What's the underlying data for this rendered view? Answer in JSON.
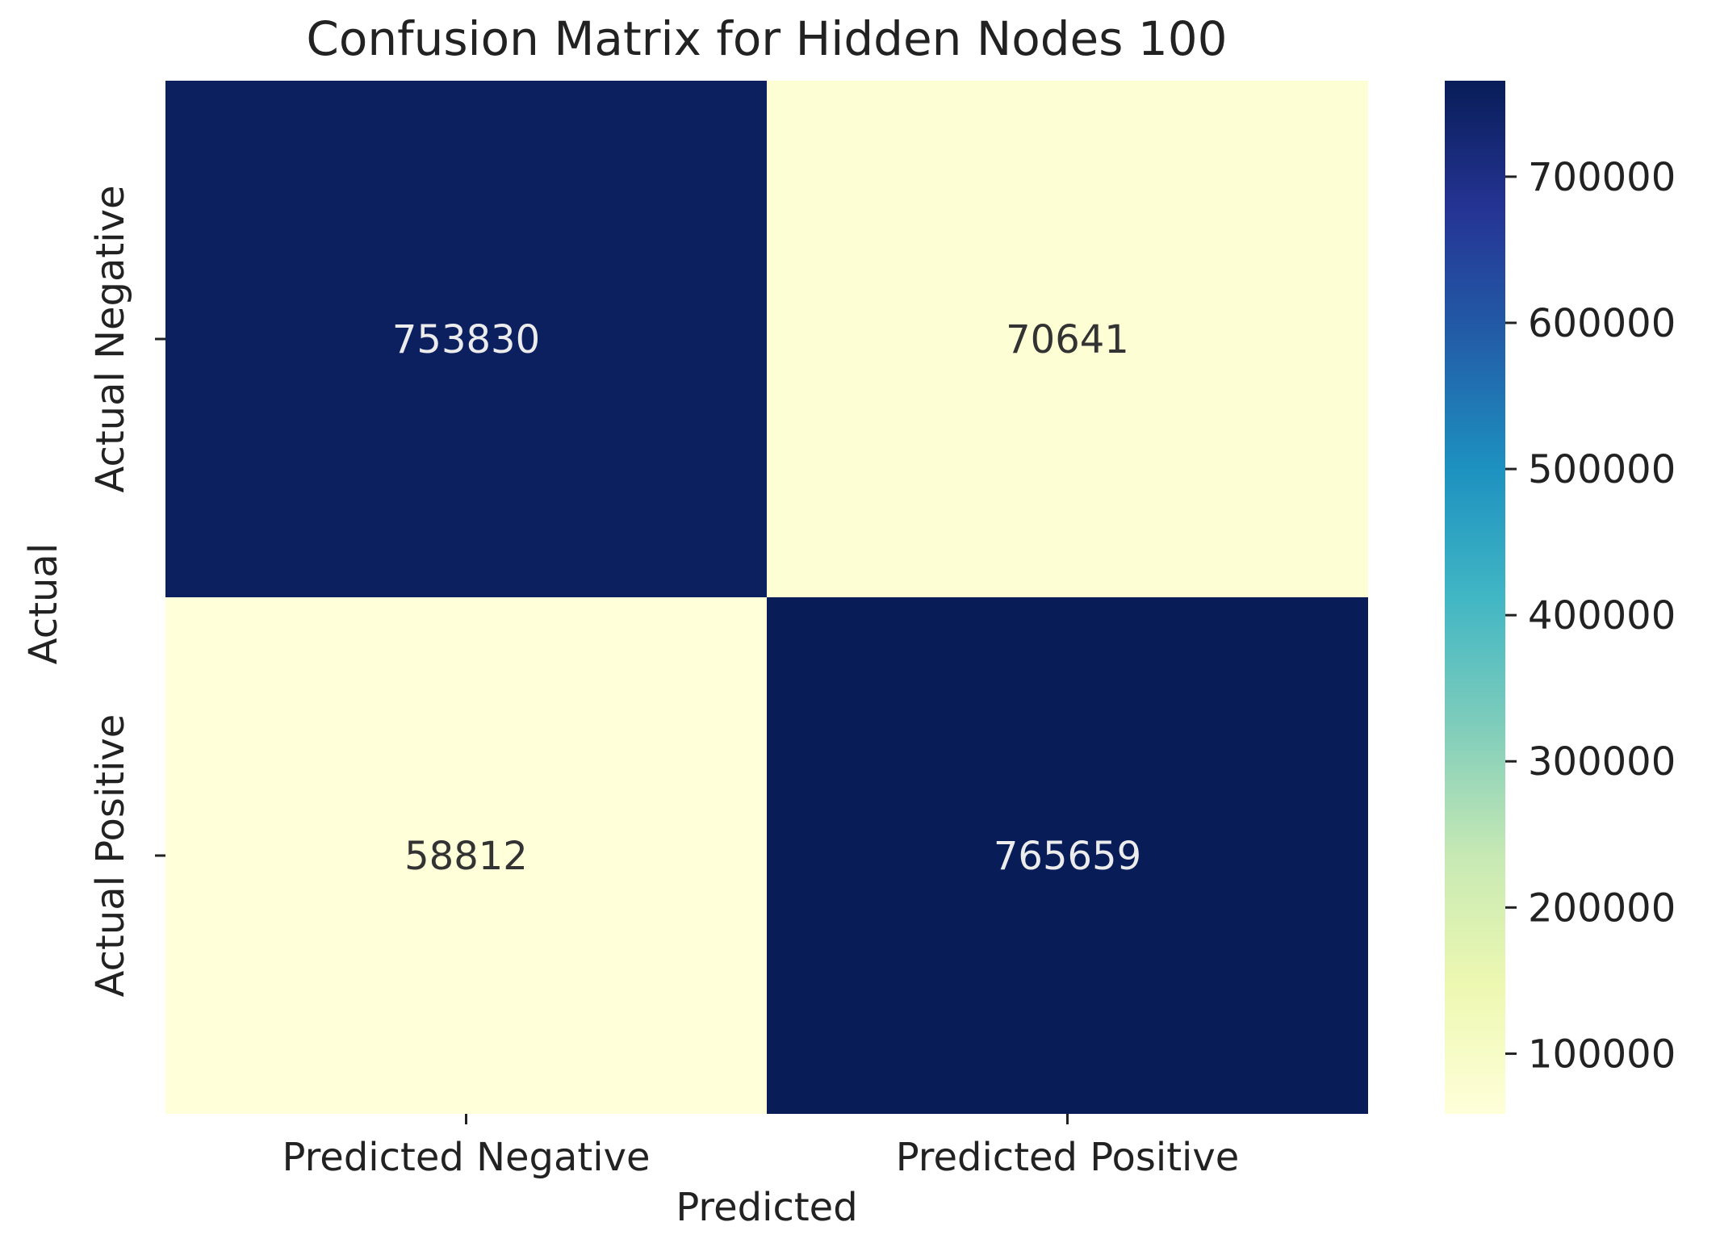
{
  "chart_data": {
    "type": "heatmap",
    "title": "Confusion Matrix for Hidden Nodes 100",
    "xlabel": "Predicted",
    "ylabel": "Actual",
    "x_categories": [
      "Predicted Negative",
      "Predicted Positive"
    ],
    "y_categories": [
      "Actual Negative",
      "Actual Positive"
    ],
    "values": [
      [
        753830,
        70641
      ],
      [
        58812,
        765659
      ]
    ],
    "cell_labels": [
      [
        "753830",
        "70641"
      ],
      [
        "58812",
        "765659"
      ]
    ],
    "colormap": "YlGnBu",
    "color_range": [
      58812,
      765659
    ],
    "colorbar_ticks": [
      100000,
      200000,
      300000,
      400000,
      500000,
      600000,
      700000
    ],
    "colorbar_tick_labels": [
      "100000",
      "200000",
      "300000",
      "400000",
      "500000",
      "600000",
      "700000"
    ],
    "colors": {
      "low": "#ffffd9",
      "high": "#081d58",
      "dark_text": "#333333",
      "light_text": "#ececec",
      "axis": "#222222"
    }
  }
}
